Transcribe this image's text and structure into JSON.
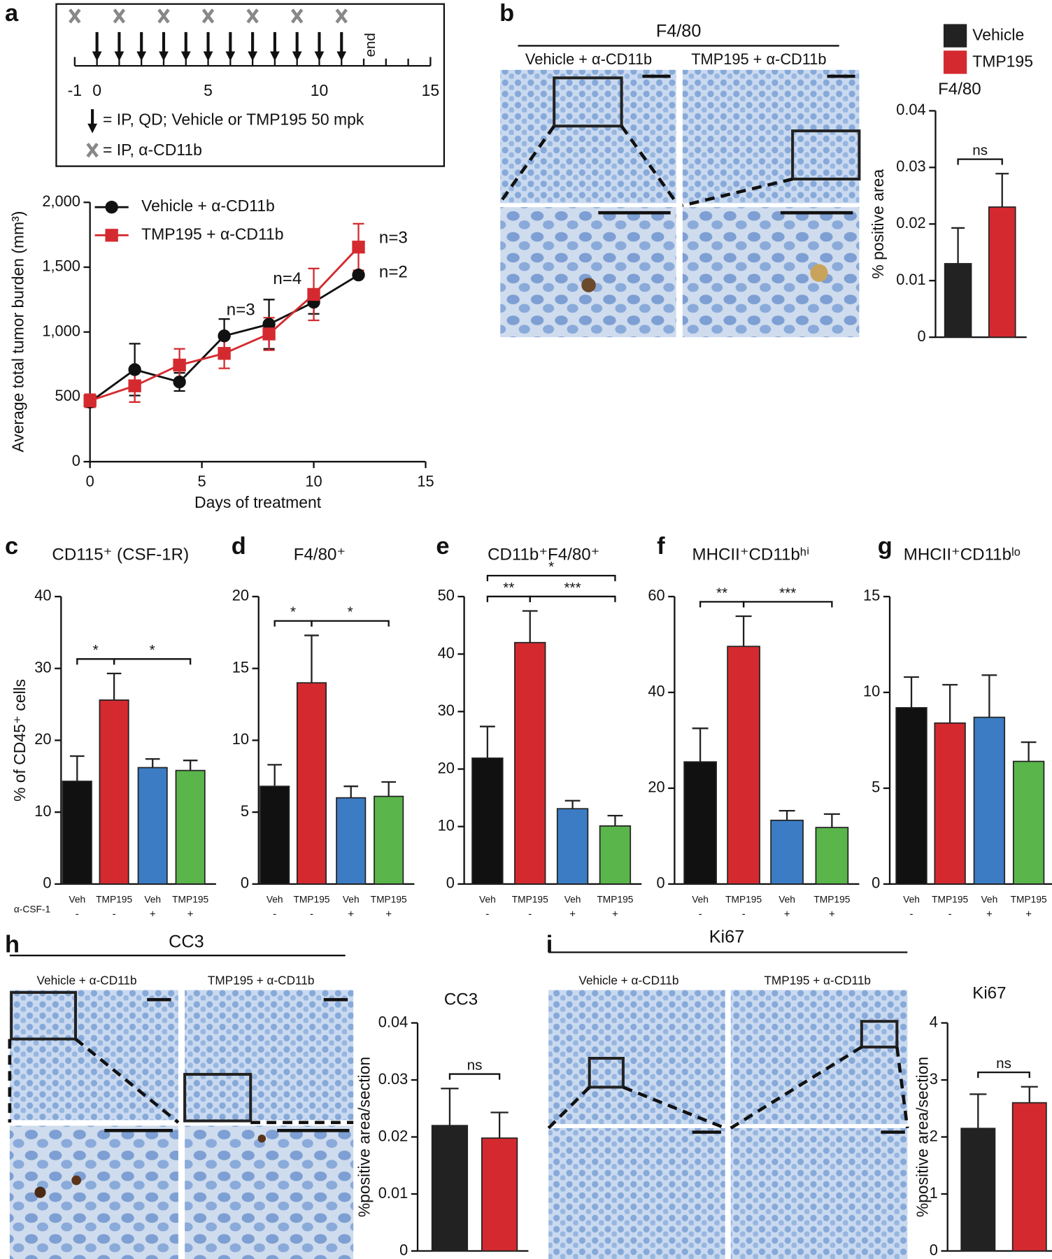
{
  "figure": {
    "panel_labels": [
      "a",
      "b",
      "c",
      "d",
      "e",
      "f",
      "g",
      "h",
      "i"
    ],
    "b": {
      "header": "F4/80",
      "captions": [
        "Vehicle + α-CD11b",
        "TMP195 + α-CD11b"
      ]
    },
    "h": {
      "header": "CC3",
      "captions": [
        "Vehicle + α-CD11b",
        "TMP195 + α-CD11b"
      ]
    },
    "i": {
      "header": "Ki67",
      "captions": [
        "Vehicle + α-CD11b",
        "TMP195 + α-CD11b"
      ]
    }
  },
  "chart_data": [
    {
      "type": "timeline",
      "xlim": [
        -1,
        15
      ],
      "xticks": [
        -1,
        0,
        5,
        10,
        15
      ],
      "minor_xticks": [
        1,
        2,
        3,
        4,
        6,
        7,
        8,
        9,
        11,
        12,
        13,
        14
      ],
      "treatment_days": [
        0,
        1,
        2,
        3,
        4,
        5,
        6,
        7,
        8,
        9,
        10,
        11
      ],
      "antibody_days": [
        -1,
        1,
        3,
        5,
        7,
        9,
        11
      ],
      "end_label": "end",
      "legend": [
        "= IP, QD; Vehicle or TMP195 50 mpk",
        "= IP, α-CD11b"
      ]
    },
    {
      "type": "line",
      "xlabel": "Days of treatment",
      "ylabel": "Average total tumor burden (mm³)",
      "x": [
        0,
        2,
        4,
        6,
        8,
        10,
        12
      ],
      "xlim": [
        0,
        15
      ],
      "xticks": [
        0,
        5,
        10,
        15
      ],
      "ylim": [
        0,
        2000
      ],
      "yticks": [
        0,
        500,
        {
          "value": 1000,
          "label": "1,000"
        },
        {
          "value": 1500,
          "label": "1,500"
        },
        {
          "value": 2000,
          "label": "2,000"
        }
      ],
      "series": [
        {
          "name": "Vehicle + α-CD11b",
          "color": "#111111",
          "marker": "circle",
          "values": [
            460,
            710,
            615,
            970,
            1060,
            1230,
            1440
          ],
          "errors": [
            30,
            200,
            70,
            130,
            190,
            90,
            0
          ]
        },
        {
          "name": "TMP195 + α-CD11b",
          "color": "#d42a2f",
          "marker": "square",
          "values": [
            470,
            585,
            745,
            835,
            985,
            1290,
            1655
          ],
          "errors": [
            50,
            125,
            125,
            115,
            125,
            200,
            180
          ]
        }
      ],
      "annotations": [
        "n=3",
        "n=2",
        "n=4",
        "n=3"
      ]
    },
    {
      "type": "bar",
      "title": "F4/80",
      "ylabel": "% positive area",
      "ylim": [
        0,
        0.04
      ],
      "yticks": [
        0,
        0.01,
        0.02,
        0.03,
        0.04
      ],
      "series": [
        {
          "name": "Vehicle",
          "color": "#222222",
          "values": [
            0.013
          ],
          "errors": [
            0.0063
          ]
        },
        {
          "name": "TMP195",
          "color": "#d42a2f",
          "values": [
            0.023
          ],
          "errors": [
            0.0059
          ]
        }
      ],
      "significance": [
        {
          "from": 0,
          "to": 1,
          "label": "ns"
        }
      ]
    },
    {
      "type": "bar",
      "title": "CD115⁺ (CSF-1R)",
      "ylabel": "% of CD45⁺ cells",
      "ylim": [
        0,
        40
      ],
      "yticks": [
        0,
        10,
        20,
        30,
        40
      ],
      "categories": [
        "Veh",
        "TMP195",
        "Veh",
        "TMP195"
      ],
      "treatment": [
        "-",
        "-",
        "+",
        "+"
      ],
      "treatment_label": "α-CSF-1",
      "colors": [
        "#111111",
        "#d42a2f",
        "#3b7cc4",
        "#5ab54b"
      ],
      "values": [
        14.3,
        25.6,
        16.2,
        15.8
      ],
      "errors": [
        3.5,
        3.7,
        1.2,
        1.4
      ],
      "significance": [
        {
          "from": 0,
          "to": 1,
          "label": "*"
        },
        {
          "from": 1,
          "to": 3,
          "label": "*"
        }
      ]
    },
    {
      "type": "bar",
      "title": "F4/80⁺",
      "ylim": [
        0,
        20
      ],
      "yticks": [
        0,
        5,
        10,
        15,
        20
      ],
      "categories": [
        "Veh",
        "TMP195",
        "Veh",
        "TMP195"
      ],
      "treatment": [
        "-",
        "-",
        "+",
        "+"
      ],
      "colors": [
        "#111111",
        "#d42a2f",
        "#3b7cc4",
        "#5ab54b"
      ],
      "values": [
        6.8,
        14.0,
        6.0,
        6.1
      ],
      "errors": [
        1.5,
        3.3,
        0.8,
        1.0
      ],
      "significance": [
        {
          "from": 0,
          "to": 1,
          "label": "*"
        },
        {
          "from": 1,
          "to": 3,
          "label": "*"
        }
      ]
    },
    {
      "type": "bar",
      "title": "CD11b⁺F4/80⁺",
      "ylim": [
        0,
        50
      ],
      "yticks": [
        0,
        10,
        20,
        30,
        40,
        50
      ],
      "categories": [
        "Veh",
        "TMP195",
        "Veh",
        "TMP195"
      ],
      "treatment": [
        "-",
        "-",
        "+",
        "+"
      ],
      "colors": [
        "#111111",
        "#d42a2f",
        "#3b7cc4",
        "#5ab54b"
      ],
      "values": [
        21.9,
        42.0,
        13.1,
        10.1
      ],
      "errors": [
        5.5,
        5.5,
        1.4,
        1.8
      ],
      "significance": [
        {
          "from": 0,
          "to": 1,
          "label": "**"
        },
        {
          "from": 1,
          "to": 3,
          "label": "***"
        },
        {
          "from": 0,
          "to": 3,
          "label": "*"
        }
      ]
    },
    {
      "type": "bar",
      "title": "MHCII⁺CD11bʰⁱ",
      "ylim": [
        0,
        60
      ],
      "yticks": [
        0,
        20,
        40,
        60
      ],
      "categories": [
        "Veh",
        "TMP195",
        "Veh",
        "TMP195"
      ],
      "treatment": [
        "-",
        "-",
        "+",
        "+"
      ],
      "colors": [
        "#111111",
        "#d42a2f",
        "#3b7cc4",
        "#5ab54b"
      ],
      "values": [
        25.5,
        49.6,
        13.3,
        11.8
      ],
      "errors": [
        7.0,
        6.3,
        2.0,
        2.8
      ],
      "significance": [
        {
          "from": 0,
          "to": 1,
          "label": "**"
        },
        {
          "from": 1,
          "to": 3,
          "label": "***"
        }
      ]
    },
    {
      "type": "bar",
      "title": "MHCII⁺CD11bˡᵒ",
      "ylim": [
        0,
        15
      ],
      "yticks": [
        0,
        5,
        10,
        15
      ],
      "categories": [
        "Veh",
        "TMP195",
        "Veh",
        "TMP195"
      ],
      "treatment": [
        "-",
        "-",
        "+",
        "+"
      ],
      "colors": [
        "#111111",
        "#d42a2f",
        "#3b7cc4",
        "#5ab54b"
      ],
      "values": [
        9.2,
        8.4,
        8.7,
        6.4
      ],
      "errors": [
        1.6,
        2.0,
        2.2,
        1.0
      ]
    },
    {
      "type": "bar",
      "title": "CC3",
      "ylabel": "%positive area/section",
      "ylim": [
        0,
        0.04
      ],
      "yticks": [
        0,
        0.01,
        0.02,
        0.03,
        0.04
      ],
      "colors": [
        "#222222",
        "#d42a2f"
      ],
      "values": [
        0.022,
        0.0198
      ],
      "errors": [
        0.0065,
        0.0045
      ],
      "significance": [
        {
          "from": 0,
          "to": 1,
          "label": "ns"
        }
      ]
    },
    {
      "type": "bar",
      "title": "Ki67",
      "ylabel": "%positive area/section",
      "ylim": [
        0,
        4
      ],
      "yticks": [
        0,
        1,
        2,
        3,
        4
      ],
      "colors": [
        "#222222",
        "#d42a2f"
      ],
      "values": [
        2.15,
        2.6
      ],
      "errors": [
        0.6,
        0.28
      ],
      "significance": [
        {
          "from": 0,
          "to": 1,
          "label": "ns"
        }
      ]
    }
  ]
}
